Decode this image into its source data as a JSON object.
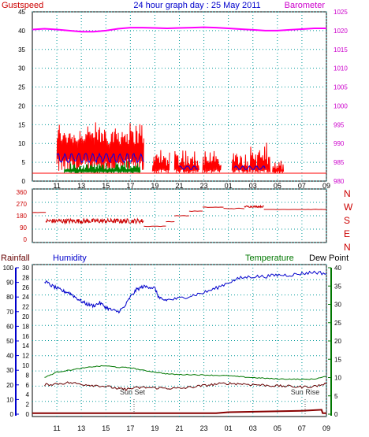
{
  "colors": {
    "gust": "#ff0000",
    "wind": "#0000ee",
    "calm": "#008000",
    "baro": "#ff00ff",
    "dir": "#cc0000",
    "hum": "#0000cc",
    "temp": "#007700",
    "dew": "#660000",
    "rain": "#880000",
    "grid": "#009999",
    "baroAxis": "#cc00cc",
    "rainAxis": "#0000cc",
    "tempAxis": "#007700",
    "dirLabel": "#cc0000"
  },
  "header": {
    "left": "Gustspeed",
    "title": "24 hour graph day : 25 May 2011",
    "right": "Barometer"
  },
  "labels": {
    "rainfall": "Rainfall",
    "humidity": "Humidity",
    "temperature": "Temperature",
    "dewpoint": "Dew Point",
    "sunset": "Sun Set",
    "sunrise": "Sun Rise"
  },
  "chart_data": [
    {
      "type": "line",
      "name": "wind",
      "x_ticks": [
        "11",
        "13",
        "15",
        "17",
        "19",
        "21",
        "23",
        "01",
        "03",
        "05",
        "07",
        "09"
      ],
      "y_left": {
        "label": "Gustspeed",
        "ticks": [
          0,
          5,
          10,
          15,
          20,
          25,
          30,
          35,
          40,
          45
        ],
        "range": [
          0,
          45
        ]
      },
      "y_right": {
        "label": "Barometer",
        "ticks": [
          980,
          985,
          990,
          995,
          1000,
          1005,
          1010,
          1015,
          1020,
          1025
        ],
        "range": [
          980,
          1025
        ]
      },
      "series": [
        {
          "name": "Gustspeed",
          "axis": "left",
          "style": "spiky",
          "segments": [
            [
              11.0,
              18.1,
              8,
              14
            ],
            [
              18.8,
              20.2,
              2,
              7
            ],
            [
              20.6,
              22.6,
              2,
              7
            ],
            [
              22.9,
              24.4,
              2,
              6
            ],
            [
              25.3,
              26.6,
              2,
              7
            ],
            [
              26.7,
              28.4,
              2,
              8
            ],
            [
              28.6,
              29.5,
              1,
              3
            ]
          ]
        },
        {
          "name": "Windspeed",
          "axis": "left",
          "style": "smooth",
          "segments": [
            [
              11.0,
              18.1,
              3,
              5.5
            ],
            [
              21.0,
              22.5,
              1,
              2
            ],
            [
              25.5,
              28.0,
              1,
              2
            ]
          ]
        },
        {
          "name": "Calm",
          "axis": "left",
          "style": "spiky",
          "segments": [
            [
              11.6,
              17.8,
              1,
              3
            ]
          ]
        },
        {
          "name": "Barometer",
          "axis": "right",
          "x": [
            9,
            10,
            11,
            12,
            13,
            14,
            15,
            16,
            17,
            18,
            19,
            20,
            21,
            22,
            23,
            24,
            25,
            26,
            27,
            28,
            29,
            30,
            31,
            32,
            33
          ],
          "values": [
            1020.3,
            1020.5,
            1020.3,
            1020.0,
            1019.7,
            1019.7,
            1020.0,
            1020.5,
            1020.8,
            1020.8,
            1020.7,
            1020.6,
            1020.7,
            1020.8,
            1020.9,
            1020.8,
            1020.6,
            1020.4,
            1020.2,
            1020.0,
            1020.0,
            1020.2,
            1020.4,
            1020.6,
            1020.6
          ]
        }
      ]
    },
    {
      "type": "line",
      "name": "direction",
      "y_ticks": [
        0,
        90,
        180,
        270,
        360
      ],
      "y_range": [
        0,
        360
      ],
      "side_labels": [
        "N",
        "W",
        "S",
        "E",
        "N"
      ],
      "series": [
        {
          "name": "Wind Direction",
          "style": "steps",
          "segments": [
            [
              9.0,
              10.1,
              205,
              1
            ],
            [
              10.1,
              18.1,
              140,
              18
            ],
            [
              18.1,
              19.9,
              100,
              2
            ],
            [
              19.9,
              20.6,
              135,
              2
            ],
            [
              20.6,
              21.8,
              180,
              2
            ],
            [
              21.8,
              22.9,
              215,
              2
            ],
            [
              22.9,
              24.6,
              245,
              2
            ],
            [
              24.6,
              26.3,
              235,
              3
            ],
            [
              26.3,
              27.9,
              250,
              6
            ],
            [
              27.9,
              33.0,
              228,
              1
            ]
          ]
        }
      ]
    },
    {
      "type": "line",
      "name": "temp_hum",
      "x_ticks": [
        "11",
        "13",
        "15",
        "17",
        "19",
        "21",
        "23",
        "01",
        "03",
        "05",
        "07",
        "09"
      ],
      "y_left": {
        "label": "Humidity",
        "ticks": [
          0,
          10,
          20,
          30,
          40,
          50,
          60,
          70,
          80,
          90,
          100
        ],
        "range": [
          0,
          100
        ]
      },
      "y_left2": {
        "label": "Rainfall",
        "ticks": [
          0,
          2,
          4,
          6,
          8,
          10,
          12,
          14,
          16,
          18,
          20,
          22,
          24,
          26,
          28,
          30
        ],
        "range": [
          0,
          30
        ]
      },
      "y_right": {
        "label": "Temperature",
        "ticks": [
          0,
          5,
          10,
          15,
          20,
          25,
          30,
          35,
          40
        ],
        "range": [
          0,
          40
        ]
      },
      "series": [
        {
          "name": "Humidity",
          "axis": "left",
          "x": [
            10.0,
            10.5,
            11.0,
            11.5,
            12.0,
            12.5,
            13.0,
            13.5,
            14.0,
            14.5,
            15.0,
            15.5,
            16.0,
            16.5,
            17.0,
            17.5,
            18.0,
            18.5,
            19.0,
            19.3,
            19.6,
            20.0,
            21.0,
            22.0,
            23.0,
            24.0,
            25.0,
            26.0,
            27.0,
            28.0,
            29.0,
            30.0,
            31.0,
            32.0,
            33.0
          ],
          "values": [
            91,
            88,
            86,
            84,
            83,
            80,
            77,
            75,
            74,
            76,
            73,
            71,
            70,
            73,
            80,
            85,
            87,
            87,
            86,
            80,
            78,
            78,
            79,
            81,
            83,
            86,
            90,
            93,
            94,
            94,
            95,
            95,
            96,
            97,
            96
          ]
        },
        {
          "name": "Temperature",
          "axis": "right",
          "x": [
            10,
            11,
            12,
            13,
            14,
            15,
            16,
            17,
            18,
            19,
            20,
            21,
            22,
            23,
            24,
            25,
            26,
            27,
            28,
            29,
            30,
            31,
            32,
            33
          ],
          "values": [
            10.0,
            11.5,
            12.0,
            12.5,
            13.0,
            13.2,
            12.8,
            12.7,
            12.0,
            11.5,
            11.0,
            10.8,
            10.8,
            10.7,
            10.6,
            10.5,
            10.2,
            10.0,
            9.8,
            9.6,
            9.6,
            9.5,
            9.6,
            10.3
          ]
        },
        {
          "name": "Dew Point",
          "axis": "right",
          "x": [
            10,
            11,
            12,
            13,
            14,
            15,
            16,
            16.5,
            17,
            18,
            19,
            20,
            21,
            22,
            23,
            24,
            25,
            26,
            27,
            28,
            29,
            30,
            31,
            32,
            33
          ],
          "values": [
            8.0,
            8.3,
            8.6,
            8.2,
            7.9,
            7.6,
            7.0,
            6.8,
            7.0,
            7.3,
            7.2,
            7.1,
            7.0,
            7.4,
            7.8,
            8.2,
            8.4,
            8.3,
            8.1,
            7.9,
            7.7,
            7.6,
            7.4,
            7.6,
            8.3
          ]
        },
        {
          "name": "Rainfall",
          "axis": "left2",
          "x": [
            9,
            24,
            25,
            31,
            32.6,
            32.7,
            33
          ],
          "values": [
            0.2,
            0.2,
            0.4,
            0.7,
            0.9,
            0.2,
            0.2
          ]
        }
      ]
    }
  ]
}
